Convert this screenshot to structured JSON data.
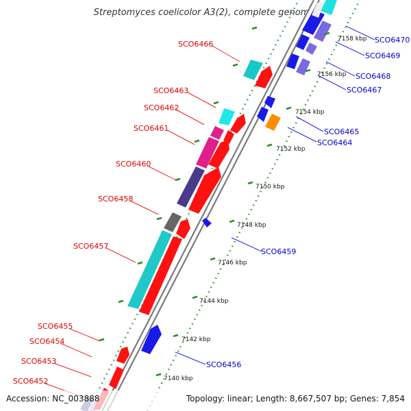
{
  "title": "Streptomyces coelicolor A3(2), complete genome",
  "footer": {
    "accession": "Accession: NC_003888",
    "summary": "Topology: linear; Length: 8,667,507 bp; Genes: 7,854"
  },
  "colors": {
    "background": "#ffffff",
    "backbone": "#777777",
    "tick_major": "#2a8a2a",
    "tick_dot": "#2a8a2a",
    "label_top": "#dd0000",
    "label_bottom": "#0000cc"
  },
  "scale": {
    "ticks_kbp": [
      7140,
      7142,
      7144,
      7146,
      7148,
      7150,
      7152,
      7154,
      7156,
      7158
    ],
    "tick_labels": [
      "7140 kbp",
      "7142 kbp",
      "7144 kbp",
      "7146 kbp",
      "7148 kbp",
      "7150 kbp",
      "7152 kbp",
      "7154 kbp",
      "7156 kbp",
      "7158 kbp"
    ]
  },
  "genes_upper": [
    {
      "id": "SCO6452",
      "label": "SCO6452"
    },
    {
      "id": "SCO6453",
      "label": "SCO6453"
    },
    {
      "id": "SCO6454",
      "label": "SCO6454"
    },
    {
      "id": "SCO6455",
      "label": "SCO6455"
    },
    {
      "id": "SCO6457",
      "label": "SCO6457"
    },
    {
      "id": "SCO6458",
      "label": "SCO6458"
    },
    {
      "id": "SCO6460",
      "label": "SCO6460"
    },
    {
      "id": "SCO6461",
      "label": "SCO6461"
    },
    {
      "id": "SCO6462",
      "label": "SCO6462"
    },
    {
      "id": "SCO6463",
      "label": "SCO6463"
    },
    {
      "id": "SCO6466",
      "label": "SCO6466"
    }
  ],
  "genes_lower": [
    {
      "id": "SCO6456",
      "label": "SCO6456"
    },
    {
      "id": "SCO6459",
      "label": "SCO6459"
    },
    {
      "id": "SCO6464",
      "label": "SCO6464"
    },
    {
      "id": "SCO6465",
      "label": "SCO6465"
    },
    {
      "id": "SCO6467",
      "label": "SCO6467"
    },
    {
      "id": "SCO6468",
      "label": "SCO6468"
    },
    {
      "id": "SCO6469",
      "label": "SCO6469"
    },
    {
      "id": "SCO6470",
      "label": "SCO6470"
    }
  ]
}
